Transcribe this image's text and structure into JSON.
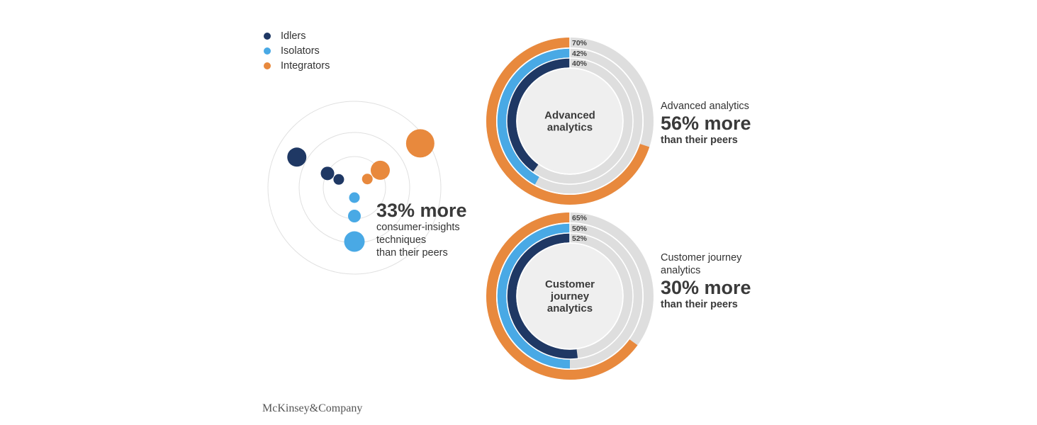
{
  "colors": {
    "idlers": "#1f3864",
    "isolators": "#49a9e5",
    "integrators": "#e8893d",
    "track": "#dedede",
    "inner": "#efefef",
    "rings": "#e0e0e0"
  },
  "legend": [
    {
      "label": "Idlers",
      "key": "idlers"
    },
    {
      "label": "Isolators",
      "key": "isolators"
    },
    {
      "label": "Integrators",
      "key": "integrators"
    }
  ],
  "radial": {
    "headline": "33% more",
    "lines": [
      "consumer-insights",
      "techniques",
      "than their peers"
    ]
  },
  "chart_data": [
    {
      "type": "radial-bubble",
      "series": [
        {
          "name": "Idlers",
          "branch": "upper-left",
          "sizes": [
            "small",
            "medium",
            "large"
          ]
        },
        {
          "name": "Integrators",
          "branch": "upper-right",
          "sizes": [
            "small",
            "medium",
            "large"
          ]
        },
        {
          "name": "Isolators",
          "branch": "down",
          "sizes": [
            "small",
            "medium",
            "large"
          ]
        }
      ]
    },
    {
      "type": "radial-bar",
      "center_label": [
        "Advanced",
        "analytics"
      ],
      "series": [
        {
          "name": "Integrators",
          "value": 70,
          "label": "70%"
        },
        {
          "name": "Isolators",
          "value": 42,
          "label": "42%"
        },
        {
          "name": "Idlers",
          "value": 40,
          "label": "40%"
        }
      ],
      "annotation": {
        "title": [
          "Advanced analytics"
        ],
        "headline": "56% more",
        "sub": "than their peers"
      }
    },
    {
      "type": "radial-bar",
      "center_label": [
        "Customer",
        "journey",
        "analytics"
      ],
      "series": [
        {
          "name": "Integrators",
          "value": 65,
          "label": "65%"
        },
        {
          "name": "Isolators",
          "value": 50,
          "label": "50%"
        },
        {
          "name": "Idlers",
          "value": 52,
          "label": "52%"
        }
      ],
      "annotation": {
        "title": [
          "Customer journey",
          "analytics"
        ],
        "headline": "30% more",
        "sub": "than their peers"
      }
    }
  ],
  "footer": {
    "logo": "McKinsey&Company"
  }
}
